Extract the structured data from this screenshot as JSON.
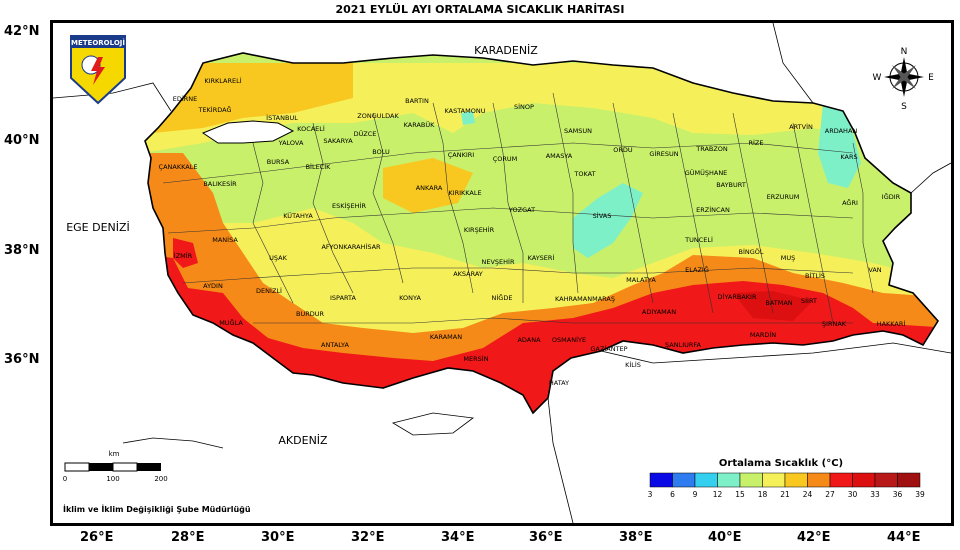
{
  "title": "2021 EYLÜL AYI ORTALAMA SICAKLIK HARİTASI",
  "lat_labels": [
    "42°N",
    "40°N",
    "38°N",
    "36°N"
  ],
  "lon_labels": [
    "26°E",
    "28°E",
    "30°E",
    "32°E",
    "34°E",
    "36°E",
    "38°E",
    "40°E",
    "42°E",
    "44°E"
  ],
  "seas": {
    "black_sea": "KARADENİZ",
    "aegean": "EGE DENİZİ",
    "mediterranean": "AKDENİZ"
  },
  "logo_text": "METEOROLOJİ",
  "compass": {
    "n": "N",
    "s": "S",
    "e": "E",
    "w": "W"
  },
  "scale": {
    "unit": "km",
    "ticks": [
      "0",
      "100",
      "200"
    ]
  },
  "credit": "İklim ve İklim Değişikliği Şube Müdürlüğü",
  "legend": {
    "title": "Ortalama Sıcaklık (°C)",
    "ticks": [
      "3",
      "6",
      "9",
      "12",
      "15",
      "18",
      "21",
      "24",
      "27",
      "30",
      "33",
      "36",
      "39"
    ],
    "colors": [
      "#0a0ae6",
      "#2e7cf0",
      "#35d0f0",
      "#7ef0c8",
      "#c8f06a",
      "#f5f05a",
      "#f8c820",
      "#f58a18",
      "#f01818",
      "#dc1010",
      "#b81818",
      "#a01010"
    ]
  },
  "provinces": [
    "KIRKLARELİ",
    "EDİRNE",
    "TEKİRDAĞ",
    "İSTANBUL",
    "KOCAELİ",
    "ZONGULDAK",
    "BARTIN",
    "KASTAMONU",
    "SİNOP",
    "KARABÜK",
    "DÜZCE",
    "SAKARYA",
    "YALOVA",
    "BOLU",
    "ÇANKIRI",
    "SAMSUN",
    "ÇORUM",
    "AMASYA",
    "ORDU",
    "GİRESUN",
    "TRABZON",
    "RİZE",
    "ARTVİN",
    "ARDAHAN",
    "KARS",
    "BURSA",
    "BİLECİK",
    "ÇANAKKALE",
    "BALIKESİR",
    "ANKARA",
    "KIRIKKALE",
    "TOKAT",
    "GÜMÜŞHANE",
    "BAYBURT",
    "ERZURUM",
    "IĞDIR",
    "ESKİŞEHİR",
    "YOZGAT",
    "SİVAS",
    "ERZİNCAN",
    "AĞRI",
    "KÜTAHYA",
    "KIRŞEHİR",
    "MANİSA",
    "İZMİR",
    "UŞAK",
    "AFYONKARAHİSAR",
    "NEVŞEHİR",
    "KAYSERİ",
    "TUNCELİ",
    "BİNGÖL",
    "MUŞ",
    "BİTLİS",
    "VAN",
    "AKSARAY",
    "ELAZIĞ",
    "MALATYA",
    "AYDIN",
    "DENİZLİ",
    "ISPARTA",
    "KONYA",
    "NİĞDE",
    "KAHRAMANMARAŞ",
    "ADIYAMAN",
    "DİYARBAKIR",
    "BATMAN",
    "SİİRT",
    "MUĞLA",
    "BURDUR",
    "ŞIRNAK",
    "HAKKARİ",
    "ANTALYA",
    "KARAMAN",
    "MERSİN",
    "ADANA",
    "OSMANİYE",
    "GAZİANTEP",
    "ŞANLIURFA",
    "MARDİN",
    "HATAY",
    "KİLİS"
  ]
}
